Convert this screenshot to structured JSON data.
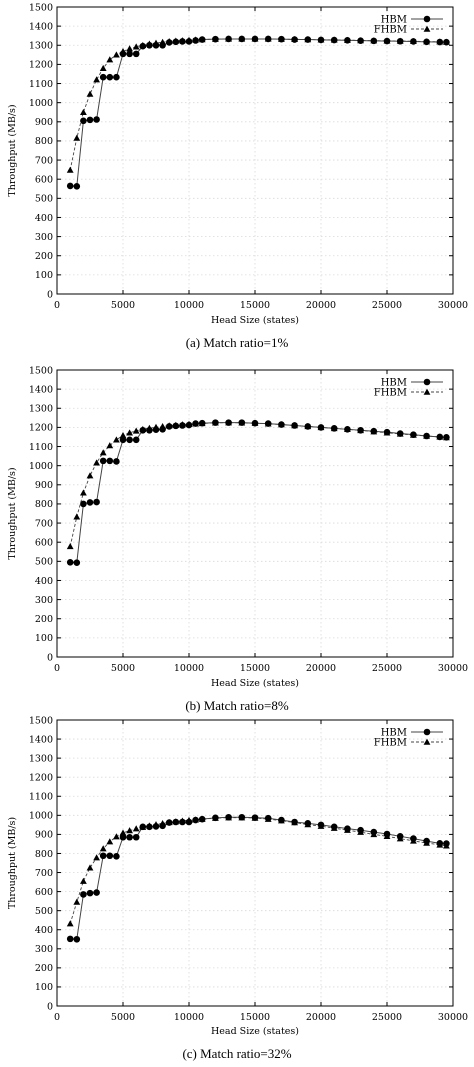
{
  "chart_data": [
    {
      "type": "line",
      "caption": "(a) Match ratio=1%",
      "xlabel": "Head Size (states)",
      "ylabel": "Throughput (MB/s)",
      "xlim": [
        0,
        30000
      ],
      "ylim": [
        0,
        1500
      ],
      "xticks": [
        0,
        5000,
        10000,
        15000,
        20000,
        25000,
        30000
      ],
      "yticks": [
        0,
        100,
        200,
        300,
        400,
        500,
        600,
        700,
        800,
        900,
        1000,
        1100,
        1200,
        1300,
        1400,
        1500
      ],
      "grid": true,
      "legend_position": "top-right",
      "series": [
        {
          "name": "HBM",
          "marker": "circle",
          "line": "solid",
          "x": [
            1000,
            1500,
            2000,
            2500,
            3000,
            3500,
            4000,
            4500,
            5000,
            5500,
            6000,
            6500,
            7000,
            7500,
            8000,
            8500,
            9000,
            9500,
            10000,
            10500,
            11000,
            12000,
            13000,
            14000,
            15000,
            16000,
            17000,
            18000,
            19000,
            20000,
            21000,
            22000,
            23000,
            24000,
            25000,
            26000,
            27000,
            28000,
            29000,
            29500
          ],
          "y": [
            565,
            563,
            905,
            910,
            912,
            1133,
            1133,
            1133,
            1255,
            1255,
            1255,
            1295,
            1300,
            1300,
            1300,
            1315,
            1318,
            1320,
            1320,
            1325,
            1330,
            1332,
            1333,
            1333,
            1333,
            1333,
            1332,
            1330,
            1330,
            1328,
            1327,
            1326,
            1324,
            1323,
            1322,
            1321,
            1320,
            1318,
            1317,
            1316
          ]
        },
        {
          "name": "FHBM",
          "marker": "triangle",
          "line": "dashed",
          "x": [
            1000,
            1500,
            2000,
            2500,
            3000,
            3500,
            4000,
            4500,
            5000,
            5500,
            6000,
            6500,
            7000,
            7500,
            8000,
            8500,
            9000,
            9500,
            10000,
            10500,
            11000,
            12000,
            13000,
            14000,
            15000,
            16000,
            17000,
            18000,
            19000,
            20000,
            21000,
            22000,
            23000,
            24000,
            25000,
            26000,
            27000,
            28000,
            29000,
            29500
          ],
          "y": [
            648,
            815,
            950,
            1045,
            1120,
            1180,
            1225,
            1250,
            1268,
            1282,
            1292,
            1300,
            1307,
            1312,
            1316,
            1320,
            1323,
            1325,
            1327,
            1329,
            1330,
            1332,
            1333,
            1333,
            1333,
            1333,
            1332,
            1331,
            1330,
            1329,
            1328,
            1327,
            1325,
            1324,
            1323,
            1322,
            1321,
            1319,
            1318,
            1317
          ]
        }
      ]
    },
    {
      "type": "line",
      "caption": "(b) Match ratio=8%",
      "xlabel": "Head Size (states)",
      "ylabel": "Throughput (MB/s)",
      "xlim": [
        0,
        30000
      ],
      "ylim": [
        0,
        1500
      ],
      "xticks": [
        0,
        5000,
        10000,
        15000,
        20000,
        25000,
        30000
      ],
      "yticks": [
        0,
        100,
        200,
        300,
        400,
        500,
        600,
        700,
        800,
        900,
        1000,
        1100,
        1200,
        1300,
        1400,
        1500
      ],
      "grid": true,
      "legend_position": "top-right",
      "series": [
        {
          "name": "HBM",
          "marker": "circle",
          "line": "solid",
          "x": [
            1000,
            1500,
            2000,
            2500,
            3000,
            3500,
            4000,
            4500,
            5000,
            5500,
            6000,
            6500,
            7000,
            7500,
            8000,
            8500,
            9000,
            9500,
            10000,
            10500,
            11000,
            12000,
            13000,
            14000,
            15000,
            16000,
            17000,
            18000,
            19000,
            20000,
            21000,
            22000,
            23000,
            24000,
            25000,
            26000,
            27000,
            28000,
            29000,
            29500
          ],
          "y": [
            495,
            493,
            800,
            808,
            810,
            1025,
            1025,
            1022,
            1135,
            1135,
            1135,
            1185,
            1185,
            1188,
            1190,
            1205,
            1208,
            1210,
            1212,
            1220,
            1222,
            1225,
            1225,
            1225,
            1222,
            1220,
            1215,
            1210,
            1205,
            1200,
            1195,
            1190,
            1185,
            1180,
            1175,
            1168,
            1162,
            1155,
            1150,
            1148
          ]
        },
        {
          "name": "FHBM",
          "marker": "triangle",
          "line": "dashed",
          "x": [
            1000,
            1500,
            2000,
            2500,
            3000,
            3500,
            4000,
            4500,
            5000,
            5500,
            6000,
            6500,
            7000,
            7500,
            8000,
            8500,
            9000,
            9500,
            10000,
            10500,
            11000,
            12000,
            13000,
            14000,
            15000,
            16000,
            17000,
            18000,
            19000,
            20000,
            21000,
            22000,
            23000,
            24000,
            25000,
            26000,
            27000,
            28000,
            29000,
            29500
          ],
          "y": [
            578,
            733,
            858,
            948,
            1015,
            1068,
            1105,
            1135,
            1158,
            1172,
            1182,
            1190,
            1196,
            1201,
            1205,
            1209,
            1212,
            1215,
            1217,
            1219,
            1221,
            1224,
            1225,
            1224,
            1222,
            1219,
            1215,
            1210,
            1205,
            1200,
            1195,
            1190,
            1184,
            1178,
            1172,
            1166,
            1160,
            1155,
            1150,
            1147
          ]
        }
      ]
    },
    {
      "type": "line",
      "caption": "(c) Match ratio=32%",
      "xlabel": "Head Size (states)",
      "ylabel": "Throughput (MB/s)",
      "xlim": [
        0,
        30000
      ],
      "ylim": [
        0,
        1500
      ],
      "xticks": [
        0,
        5000,
        10000,
        15000,
        20000,
        25000,
        30000
      ],
      "yticks": [
        0,
        100,
        200,
        300,
        400,
        500,
        600,
        700,
        800,
        900,
        1000,
        1100,
        1200,
        1300,
        1400,
        1500
      ],
      "grid": true,
      "legend_position": "top-right",
      "series": [
        {
          "name": "HBM",
          "marker": "circle",
          "line": "solid",
          "x": [
            1000,
            1500,
            2000,
            2500,
            3000,
            3500,
            4000,
            4500,
            5000,
            5500,
            6000,
            6500,
            7000,
            7500,
            8000,
            8500,
            9000,
            9500,
            10000,
            10500,
            11000,
            12000,
            13000,
            14000,
            15000,
            16000,
            17000,
            18000,
            19000,
            20000,
            21000,
            22000,
            23000,
            24000,
            25000,
            26000,
            27000,
            28000,
            29000,
            29500
          ],
          "y": [
            352,
            350,
            585,
            592,
            595,
            788,
            788,
            785,
            885,
            885,
            885,
            940,
            940,
            942,
            945,
            962,
            965,
            965,
            965,
            975,
            980,
            987,
            990,
            990,
            988,
            985,
            975,
            965,
            958,
            950,
            940,
            930,
            922,
            912,
            902,
            890,
            878,
            865,
            853,
            852
          ]
        },
        {
          "name": "FHBM",
          "marker": "triangle",
          "line": "dashed",
          "x": [
            1000,
            1500,
            2000,
            2500,
            3000,
            3500,
            4000,
            4500,
            5000,
            5500,
            6000,
            6500,
            7000,
            7500,
            8000,
            8500,
            9000,
            9500,
            10000,
            10500,
            11000,
            12000,
            13000,
            14000,
            15000,
            16000,
            17000,
            18000,
            19000,
            20000,
            21000,
            22000,
            23000,
            24000,
            25000,
            26000,
            27000,
            28000,
            29000,
            29500
          ],
          "y": [
            432,
            545,
            655,
            725,
            778,
            825,
            862,
            888,
            908,
            920,
            930,
            938,
            945,
            952,
            958,
            963,
            967,
            971,
            974,
            977,
            980,
            985,
            988,
            988,
            986,
            980,
            972,
            962,
            952,
            943,
            933,
            922,
            912,
            900,
            890,
            878,
            866,
            855,
            845,
            840
          ]
        }
      ]
    }
  ]
}
